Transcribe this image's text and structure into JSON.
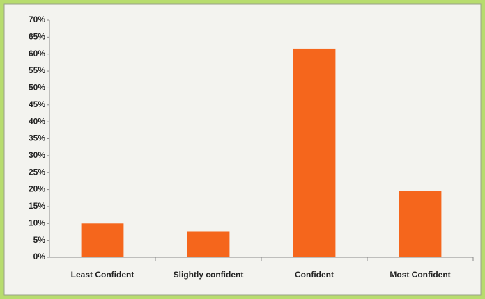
{
  "chart_data": {
    "type": "bar",
    "categories": [
      "Least Confident",
      "Slightly confident",
      "Confident",
      "Most Confident"
    ],
    "values": [
      10,
      7.7,
      61.6,
      19.5
    ],
    "color": "#f5661c",
    "ylim": [
      0,
      70
    ],
    "yticks": [
      {
        "value": 0,
        "label": "0%"
      },
      {
        "value": 5,
        "label": "5%"
      },
      {
        "value": 10,
        "label": "10%"
      },
      {
        "value": 15,
        "label": "15%"
      },
      {
        "value": 20,
        "label": "20%"
      },
      {
        "value": 25,
        "label": "25%"
      },
      {
        "value": 30,
        "label": "30%"
      },
      {
        "value": 35,
        "label": "35%"
      },
      {
        "value": 40,
        "label": "40%"
      },
      {
        "value": 45,
        "label": "45%"
      },
      {
        "value": 50,
        "label": "50%"
      },
      {
        "value": 55,
        "label": "55%"
      },
      {
        "value": 60,
        "label": "60%"
      },
      {
        "value": 65,
        "label": "65%"
      },
      {
        "value": 70,
        "label": "70%"
      }
    ],
    "grid": false
  }
}
